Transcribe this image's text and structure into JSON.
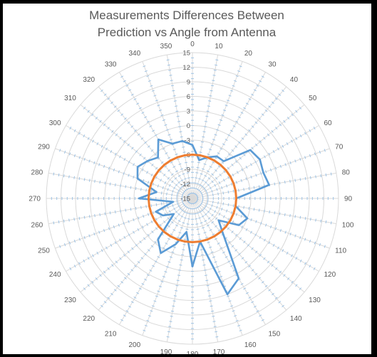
{
  "chart_data": {
    "type": "radar",
    "title_lines": [
      "Measurements Differences Between",
      "Prediction vs Angle from Antenna"
    ],
    "angles": [
      0,
      10,
      20,
      30,
      40,
      50,
      60,
      70,
      80,
      90,
      100,
      110,
      120,
      130,
      140,
      150,
      160,
      170,
      180,
      190,
      200,
      210,
      220,
      230,
      240,
      250,
      260,
      270,
      280,
      290,
      300,
      310,
      320,
      330,
      340,
      350
    ],
    "angle_labels": [
      "0",
      "10",
      "20",
      "30",
      "40",
      "50",
      "60",
      "70",
      "80",
      "90",
      "100",
      "110",
      "120",
      "130",
      "140",
      "150",
      "160",
      "170",
      "180",
      "190",
      "200",
      "210",
      "220",
      "230",
      "240",
      "250",
      "260",
      "270",
      "280",
      "290",
      "300",
      "310",
      "320",
      "330",
      "340",
      "350"
    ],
    "radial_ticks": [
      15,
      12,
      9,
      6,
      3,
      0,
      -3,
      -6,
      -9,
      -12,
      -15
    ],
    "radial_tick_labels": [
      "15",
      "12",
      "9",
      "6",
      "3",
      "0",
      "-3",
      "-6",
      "-9",
      "-12",
      "-15"
    ],
    "rlim": [
      -15,
      15
    ],
    "grid": true,
    "legend": "none",
    "series": [
      {
        "color": "#5B9BD5",
        "values": [
          -4,
          -7,
          -6,
          -5,
          -5,
          0.5,
          1,
          0.5,
          1,
          -6,
          -6,
          -3,
          -4,
          -8,
          -5,
          4,
          6,
          -6,
          -1,
          -8,
          -5,
          -2,
          -4,
          -10,
          -8,
          -7,
          -11,
          -4,
          -7.5,
          -3,
          -2,
          -3,
          -4,
          -1,
          -3,
          -3
        ]
      },
      {
        "color": "#ED7D31",
        "values": [
          -6,
          -6,
          -6,
          -6,
          -6,
          -6,
          -6,
          -6,
          -6,
          -6,
          -6,
          -6,
          -6,
          -6,
          -6,
          -6,
          -6,
          -6,
          -6,
          -6,
          -6,
          -6,
          -6,
          -6,
          -6,
          -6,
          -6,
          -6,
          -6,
          -6,
          -6,
          -6,
          -6,
          -6,
          -6,
          -6
        ]
      }
    ]
  }
}
